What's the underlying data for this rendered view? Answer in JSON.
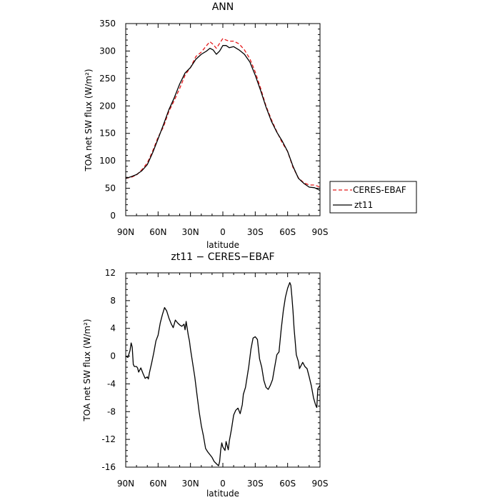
{
  "chart_data": [
    {
      "type": "line",
      "title": "ANN",
      "xlabel": "latitude",
      "ylabel": "TOA net SW flux (W/m²)",
      "xlim": [
        90,
        -90
      ],
      "ylim": [
        0,
        350
      ],
      "x_ticks": [
        {
          "value": 90,
          "label": "90N"
        },
        {
          "value": 60,
          "label": "60N"
        },
        {
          "value": 30,
          "label": "30N"
        },
        {
          "value": 0,
          "label": "0"
        },
        {
          "value": -30,
          "label": "30S"
        },
        {
          "value": -60,
          "label": "60S"
        },
        {
          "value": -90,
          "label": "90S"
        }
      ],
      "y_ticks": [
        0,
        50,
        100,
        150,
        200,
        250,
        300,
        350
      ],
      "legend_placement": "right",
      "series": [
        {
          "name": "CERES-EBAF",
          "color": "#e41a1c",
          "dash": "dashed",
          "x": [
            90,
            85,
            80,
            75,
            70,
            65,
            60,
            55,
            50,
            45,
            40,
            35,
            30,
            25,
            20,
            15,
            12,
            9,
            6,
            3,
            0,
            -3,
            -6,
            -10,
            -15,
            -20,
            -25,
            -30,
            -35,
            -40,
            -45,
            -50,
            -55,
            -60,
            -65,
            -70,
            -75,
            -80,
            -85,
            -90
          ],
          "y": [
            68,
            70,
            74,
            84,
            96,
            118,
            143,
            162,
            190,
            210,
            232,
            256,
            270,
            290,
            298,
            310,
            317,
            312,
            305,
            314,
            323,
            320,
            318,
            318,
            313,
            302,
            286,
            262,
            232,
            200,
            175,
            153,
            133,
            117,
            88,
            69,
            60,
            56,
            56,
            52
          ]
        },
        {
          "name": "zt11",
          "color": "#000000",
          "dash": "solid",
          "x": [
            90,
            85,
            80,
            75,
            70,
            65,
            60,
            55,
            50,
            45,
            40,
            35,
            30,
            25,
            20,
            15,
            12,
            9,
            6,
            3,
            0,
            -3,
            -6,
            -10,
            -15,
            -20,
            -25,
            -30,
            -35,
            -40,
            -45,
            -50,
            -55,
            -60,
            -65,
            -70,
            -75,
            -80,
            -85,
            -90
          ],
          "y": [
            68,
            71,
            75,
            82,
            93,
            115,
            140,
            166,
            193,
            215,
            240,
            260,
            270,
            285,
            294,
            300,
            305,
            302,
            294,
            300,
            310,
            310,
            306,
            308,
            302,
            294,
            280,
            256,
            228,
            198,
            172,
            152,
            136,
            117,
            90,
            68,
            59,
            52,
            51,
            46
          ]
        }
      ]
    },
    {
      "type": "line",
      "title": "zt11 − CERES−EBAF",
      "xlabel": "latitude",
      "ylabel": "TOA net SW flux (W/m²)",
      "xlim": [
        90,
        -90
      ],
      "ylim": [
        -16,
        12
      ],
      "x_ticks": [
        {
          "value": 90,
          "label": "90N"
        },
        {
          "value": 60,
          "label": "60N"
        },
        {
          "value": 30,
          "label": "30N"
        },
        {
          "value": 0,
          "label": "0"
        },
        {
          "value": -30,
          "label": "30S"
        },
        {
          "value": -60,
          "label": "60S"
        },
        {
          "value": -90,
          "label": "90S"
        }
      ],
      "y_ticks": [
        -16,
        -12,
        -8,
        -4,
        0,
        4,
        8,
        12
      ],
      "series": [
        {
          "color": "#000000",
          "dash": "solid",
          "x": [
            90,
            88,
            86,
            85,
            84,
            83,
            82,
            80,
            79,
            78,
            76,
            74,
            72,
            70,
            69,
            68,
            66,
            64,
            62,
            60,
            58,
            56,
            54,
            52,
            50,
            48,
            46,
            44,
            42,
            40,
            38,
            36,
            35,
            34,
            32,
            31,
            30,
            28,
            26,
            24,
            22,
            20,
            18,
            16,
            14,
            12,
            10,
            8,
            6,
            4,
            3,
            2,
            1,
            0,
            -2,
            -3,
            -5,
            -6,
            -8,
            -10,
            -12,
            -14,
            -16,
            -18,
            -19,
            -21,
            -22,
            -24,
            -26,
            -28,
            -30,
            -32,
            -34,
            -36,
            -38,
            -40,
            -42,
            -44,
            -46,
            -48,
            -50,
            -52,
            -54,
            -56,
            -58,
            -60,
            -62,
            -63,
            -64,
            -65,
            -66,
            -67,
            -68,
            -70,
            -71,
            -72,
            -74,
            -76,
            -78,
            -80,
            -82,
            -84,
            -86,
            -87,
            -88,
            -90
          ],
          "y": [
            0,
            -0.2,
            0.8,
            1.9,
            1.3,
            -1.2,
            -1.5,
            -1.5,
            -1.7,
            -2.3,
            -1.7,
            -2.5,
            -3.2,
            -3.0,
            -3.3,
            -2.4,
            -1.0,
            0.5,
            2.2,
            3.0,
            4.8,
            6.0,
            7.0,
            6.5,
            5.5,
            4.7,
            4.1,
            5.2,
            4.8,
            4.5,
            4.3,
            4.6,
            3.8,
            5.0,
            3.0,
            2.2,
            1.0,
            -1.0,
            -3.0,
            -5.5,
            -8.0,
            -10.0,
            -11.5,
            -13.3,
            -13.8,
            -14.2,
            -14.6,
            -15.2,
            -15.5,
            -15.8,
            -15.2,
            -13.5,
            -12.5,
            -13.1,
            -13.6,
            -12.3,
            -13.5,
            -12.2,
            -10.5,
            -8.5,
            -7.8,
            -7.5,
            -8.3,
            -7.0,
            -5.5,
            -4.5,
            -3.5,
            -1.5,
            1.0,
            2.6,
            2.8,
            2.4,
            -0.4,
            -1.6,
            -3.5,
            -4.5,
            -4.8,
            -4.2,
            -3.4,
            -1.6,
            0.2,
            0.6,
            3.8,
            6.5,
            8.5,
            9.8,
            10.6,
            10.2,
            8.5,
            6.5,
            4.0,
            2.2,
            0.2,
            -0.8,
            -1.8,
            -1.5,
            -0.9,
            -1.5,
            -1.8,
            -3.0,
            -4.3,
            -6.0,
            -7.1,
            -7.4,
            -4.7,
            -4.2
          ]
        }
      ]
    }
  ]
}
